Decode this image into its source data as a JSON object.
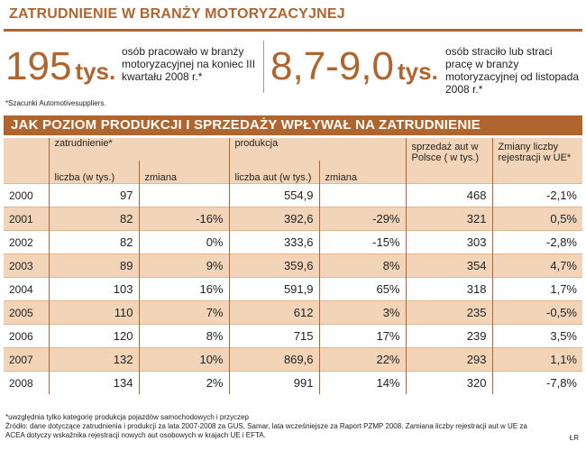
{
  "title": "ZATRUDNIENIE W BRANŻY MOTORYZACYJNEJ",
  "stat1": {
    "value": "195",
    "unit": "tys.",
    "description": "osób pracowało w branży motoryzacyjnej na koniec III kwartału 2008 r.*"
  },
  "stat2": {
    "value": "8,7-9,0",
    "unit": "tys.",
    "description": "osób straciło lub straci pracę w branży motoryzacyjnej od listopada 2008 r.*"
  },
  "footnote_estimate": "*Szacunki Automotivesuppliers.",
  "section_title": "JAK POZIOM PRODUKCJI I SPRZEDAŻY WPŁYWAŁ NA ZATRUDNIENIE",
  "chart_data": {
    "type": "table",
    "title": "JAK POZIOM PRODUKCJI I SPRZEDAŻY WPŁYWAŁ NA ZATRUDNIENIE",
    "group_headers": [
      "zatrudnienie*",
      "produkcja",
      "sprzedaż aut w Polsce ( w tys.)",
      "Zmiany liczby rejestracji w UE*"
    ],
    "sub_headers": [
      "liczba (w tys.)",
      "zmiana",
      "liczba aut (w tys.)",
      "zmiana"
    ],
    "rows": [
      {
        "year": "2000",
        "emp": "97",
        "emp_change": "",
        "prod": "554,9",
        "prod_change": "",
        "sales": "468",
        "eu": "-2,1%"
      },
      {
        "year": "2001",
        "emp": "82",
        "emp_change": "-16%",
        "prod": "392,6",
        "prod_change": "-29%",
        "sales": "321",
        "eu": "0,5%"
      },
      {
        "year": "2002",
        "emp": "82",
        "emp_change": "0%",
        "prod": "333,6",
        "prod_change": "-15%",
        "sales": "303",
        "eu": "-2,8%"
      },
      {
        "year": "2003",
        "emp": "89",
        "emp_change": "9%",
        "prod": "359,6",
        "prod_change": "8%",
        "sales": "354",
        "eu": "4,7%"
      },
      {
        "year": "2004",
        "emp": "103",
        "emp_change": "16%",
        "prod": "591,9",
        "prod_change": "65%",
        "sales": "318",
        "eu": "1,7%"
      },
      {
        "year": "2005",
        "emp": "110",
        "emp_change": "7%",
        "prod": "612",
        "prod_change": "3%",
        "sales": "235",
        "eu": "-0,5%"
      },
      {
        "year": "2006",
        "emp": "120",
        "emp_change": "8%",
        "prod": "715",
        "prod_change": "17%",
        "sales": "239",
        "eu": "3,5%"
      },
      {
        "year": "2007",
        "emp": "132",
        "emp_change": "10%",
        "prod": "869,6",
        "prod_change": "22%",
        "sales": "293",
        "eu": "1,1%"
      },
      {
        "year": "2008",
        "emp": "134",
        "emp_change": "2%",
        "prod": "991",
        "prod_change": "14%",
        "sales": "320",
        "eu": "-7,8%"
      }
    ]
  },
  "footnotes": [
    "*uwzględnia tylko kategorię produkcja pojazdów samochodowych i przyczep",
    "Źródło: dane dotyczące zatrudnienia i produkcji za lata 2007-2008 za GUS, Samar, lata wcześniejsze za Raport PZMP 2008. Zamiana liczby rejestracji aut w UE za ACEA dotyczy wskaźnika rejestracji nowych aut osobowych w krajach UE i EFTA."
  ],
  "credit": "ŁR"
}
